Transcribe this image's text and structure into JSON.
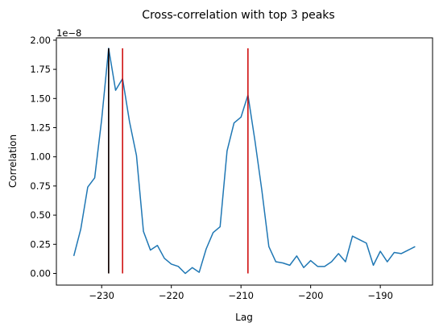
{
  "chart_data": {
    "type": "line",
    "title": "Cross-correlation with top 3 peaks",
    "xlabel": "Lag",
    "ylabel": "Correlation",
    "y_exponent_label": "1e−8",
    "xlim": [
      -236.5,
      -182.5
    ],
    "ylim": [
      -0.1,
      2.02
    ],
    "x_ticks": [
      -230,
      -220,
      -210,
      -200,
      -190
    ],
    "x_tick_labels": [
      "−230",
      "−220",
      "−210",
      "−200",
      "−190"
    ],
    "y_ticks": [
      0,
      0.25,
      0.5,
      0.75,
      1.0,
      1.25,
      1.5,
      1.75,
      2.0
    ],
    "y_tick_labels": [
      "0.00",
      "0.25",
      "0.50",
      "0.75",
      "1.00",
      "1.25",
      "1.50",
      "1.75",
      "2.00"
    ],
    "grid": false,
    "series": [
      {
        "color": "#1f77b4",
        "x": [
          -234,
          -233,
          -232,
          -231,
          -230,
          -229,
          -228,
          -227,
          -226,
          -225,
          -224,
          -223,
          -222,
          -221,
          -220,
          -219,
          -218,
          -217,
          -216,
          -215,
          -214,
          -213,
          -212,
          -211,
          -210,
          -209,
          -208,
          -207,
          -206,
          -205,
          -204,
          -203,
          -202,
          -201,
          -200,
          -199,
          -198,
          -197,
          -196,
          -195,
          -194,
          -193,
          -192,
          -191,
          -190,
          -189,
          -188,
          -187,
          -186,
          -185
        ],
        "y": [
          0.15,
          0.38,
          0.74,
          0.82,
          1.32,
          1.93,
          1.57,
          1.67,
          1.3,
          1.01,
          0.36,
          0.2,
          0.24,
          0.13,
          0.08,
          0.06,
          0.0,
          0.05,
          0.01,
          0.21,
          0.35,
          0.4,
          1.05,
          1.29,
          1.34,
          1.53,
          1.14,
          0.71,
          0.23,
          0.1,
          0.09,
          0.07,
          0.15,
          0.05,
          0.11,
          0.06,
          0.06,
          0.1,
          0.17,
          0.1,
          0.32,
          0.29,
          0.26,
          0.07,
          0.19,
          0.1,
          0.18,
          0.17,
          0.2,
          0.23
        ]
      }
    ],
    "peak_lines": [
      {
        "x": -229,
        "ymin": 0,
        "ymax": 1.93,
        "color": "#8b0000"
      },
      {
        "x": -227,
        "ymin": 0,
        "ymax": 1.93,
        "color": "#cc0000"
      },
      {
        "x": -209,
        "ymin": 0,
        "ymax": 1.93,
        "color": "#cc0000"
      },
      {
        "x": -229,
        "ymin": 0,
        "ymax": 1.93,
        "color": "#000000"
      }
    ]
  }
}
